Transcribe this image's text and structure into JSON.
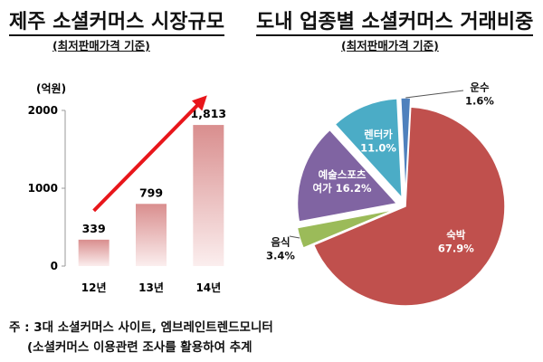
{
  "left": {
    "title": "제주 소셜커머스 시장규모",
    "subtitle": "(최저판매가격 기준)",
    "unit": "(억원)"
  },
  "right": {
    "title": "도내 업종별 소셜커머스 거래비중",
    "subtitle": "(최저판매가격 기준)"
  },
  "note": {
    "line1": "주 : 3대 소셜커머스 사이트, 엠브레인트렌드모니터",
    "line2": "(소셜커머스 이용관련 조사를 활용하여 추계"
  },
  "colors": {
    "bar_top": "#d98e8e",
    "bar_bottom": "#fbeeee",
    "arrow": "#e8161b",
    "lodging": "#c0504d",
    "food": "#9bbb59",
    "culture": "#8064a2",
    "rental": "#4bacc6",
    "transport": "#4f81bd"
  },
  "chart_data": [
    {
      "type": "bar",
      "categories": [
        "12년",
        "13년",
        "14년"
      ],
      "values": [
        339,
        799,
        1813
      ],
      "value_labels": [
        "339",
        "799",
        "1,813"
      ],
      "ylim": [
        0,
        2000
      ],
      "yticks": [
        0,
        1000,
        2000
      ],
      "ylabel": "(억원)",
      "grid": false,
      "trend_arrow": true
    },
    {
      "type": "pie",
      "slices": [
        {
          "name": "숙박",
          "value": 67.9,
          "pct_label": "67.9%",
          "color": "#c0504d",
          "explode": false
        },
        {
          "name": "음식",
          "value": 3.4,
          "pct_label": "3.4%",
          "color": "#9bbb59",
          "explode": true
        },
        {
          "name": "예술스포츠 여가",
          "name_lines": [
            "예술스포츠",
            "여가 16.2%"
          ],
          "value": 16.2,
          "pct_label": "16.2%",
          "color": "#8064a2",
          "explode": true
        },
        {
          "name": "렌터카",
          "value": 11.0,
          "pct_label": "11.0%",
          "color": "#4bacc6",
          "explode": true
        },
        {
          "name": "운수",
          "value": 1.6,
          "pct_label": "1.6%",
          "color": "#4f81bd",
          "explode": true
        }
      ]
    }
  ]
}
